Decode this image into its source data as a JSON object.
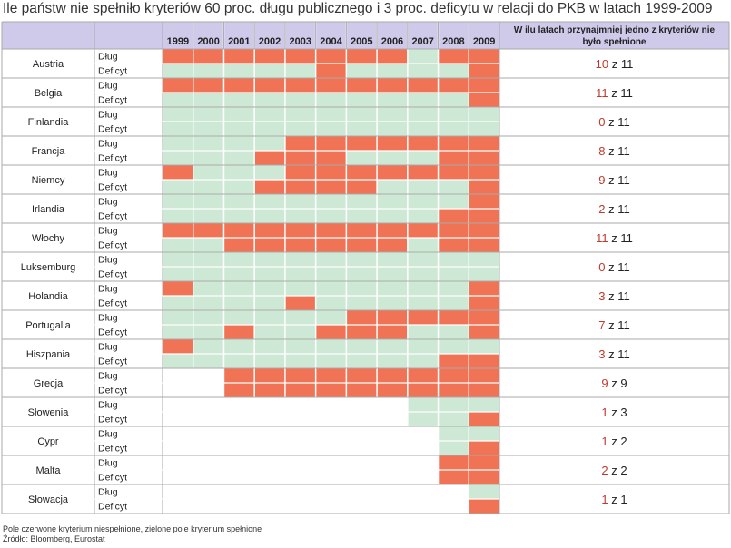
{
  "title": "Ile państw nie spełniło kryteriów 60 proc. długu publicznego i 3 proc. deficytu w relacji do PKB w latach 1999-2009",
  "summary_header": "W ilu latach przynajmniej jedno z kryteriów nie było spełnione",
  "row_labels": [
    "Dług",
    "Deficyt"
  ],
  "footer": {
    "legend": "Pole czerwone kryterium niespełnione, zielone pole kryterium spełnione",
    "source": "Źródło: Bloomberg, Eurostat"
  },
  "colors": {
    "red": "#f07355",
    "green": "#cde9d5",
    "empty": "#ffffff",
    "header": "#cfc9ea",
    "count_red": "#c0392b"
  },
  "chart_data": {
    "type": "table",
    "encoding": "R = criterion not met (red), G = criterion met (green), - = no data (white)",
    "years": [
      "1999",
      "2000",
      "2001",
      "2002",
      "2003",
      "2004",
      "2005",
      "2006",
      "2007",
      "2008",
      "2009"
    ],
    "countries": [
      {
        "name": "Austria",
        "debt": "RRRRRRRRGRR",
        "deficit": "GGGGGRGGGGR",
        "count": "10",
        "sep": "z",
        "total": "11"
      },
      {
        "name": "Belgia",
        "debt": "RRRRRRRRRRR",
        "deficit": "GGGGGGGGGGR",
        "count": "11",
        "sep": "z",
        "total": "11"
      },
      {
        "name": "Finlandia",
        "debt": "GGGGGGGGGGG",
        "deficit": "GGGGGGGGGGG",
        "count": "0",
        "sep": "z",
        "total": "11"
      },
      {
        "name": "Francja",
        "debt": "GGGGRRRRRRR",
        "deficit": "GGGRRRGGGRR",
        "count": "8",
        "sep": "z",
        "total": "11"
      },
      {
        "name": "Niemcy",
        "debt": "RGGGRRRRRRR",
        "deficit": "GGGRRRRGGGR",
        "count": "9",
        "sep": "z",
        "total": "11"
      },
      {
        "name": "Irlandia",
        "debt": "GGGGGGGGGGR",
        "deficit": "GGGGGGGGGRR",
        "count": "2",
        "sep": "z",
        "total": "11"
      },
      {
        "name": "Włochy",
        "debt": "RRRRRRRRRRR",
        "deficit": "GGRRRRRRGRR",
        "count": "11",
        "sep": "z",
        "total": "11"
      },
      {
        "name": "Luksemburg",
        "debt": "GGGGGGGGGGG",
        "deficit": "GGGGGGGGGGG",
        "count": "0",
        "sep": "z",
        "total": "11"
      },
      {
        "name": "Holandia",
        "debt": "RGGGGGGGGGR",
        "deficit": "GGGGRGGGGGR",
        "count": "3",
        "sep": "z",
        "total": "11"
      },
      {
        "name": "Portugalia",
        "debt": "GGGGGGRRRRR",
        "deficit": "GGRGGRRRGGR",
        "count": "7",
        "sep": "z",
        "total": "11"
      },
      {
        "name": "Hiszpania",
        "debt": "RGGGGGGGGGG",
        "deficit": "GGGGGGGGGRR",
        "count": "3",
        "sep": "z",
        "total": "11"
      },
      {
        "name": "Grecja",
        "debt": "--RRRRRRRRR",
        "deficit": "--RRRRRRRRR",
        "count": "9",
        "sep": "z",
        "total": "9"
      },
      {
        "name": "Słowenia",
        "debt": "--------GGG",
        "deficit": "--------GGR",
        "count": "1",
        "sep": "z",
        "total": "3"
      },
      {
        "name": "Cypr",
        "debt": "---------GG",
        "deficit": "---------GR",
        "count": "1",
        "sep": "z",
        "total": "2"
      },
      {
        "name": "Malta",
        "debt": "---------RR",
        "deficit": "---------RR",
        "count": "2",
        "sep": "z",
        "total": "2"
      },
      {
        "name": "Słowacja",
        "debt": "----------G",
        "deficit": "----------R",
        "count": "1",
        "sep": "z",
        "total": "1"
      }
    ]
  }
}
